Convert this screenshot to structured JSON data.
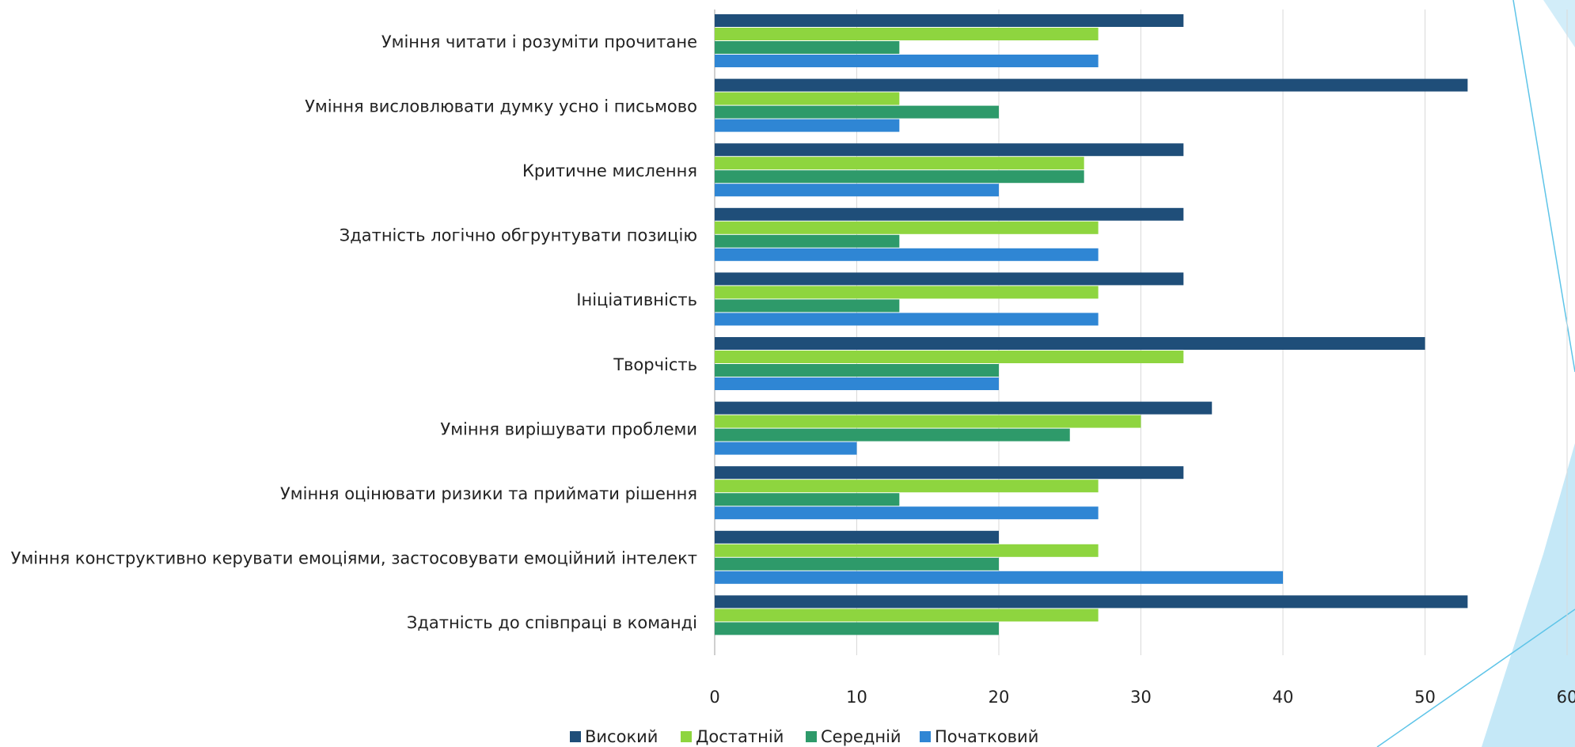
{
  "chart_data": {
    "type": "bar",
    "orientation": "horizontal",
    "categories": [
      "Уміння читати і розуміти прочитане",
      "Уміння висловлювати думку усно і письмово",
      "Критичне мислення",
      "Здатність логічно обгрунтувати позицію",
      "Ініціативність",
      "Творчість",
      "Уміння вирішувати проблеми",
      "Уміння оцінювати ризики та приймати рішення",
      "Уміння конструктивно керувати емоціями, застосовувати емоційний інтелект",
      "Здатність до співпраці в команді"
    ],
    "series": [
      {
        "name": "Високий",
        "color": "#1f4e79",
        "values": [
          33,
          53,
          33,
          33,
          33,
          50,
          35,
          33,
          20,
          53
        ]
      },
      {
        "name": "Достатній",
        "color": "#8ed53f",
        "values": [
          27,
          13,
          26,
          27,
          27,
          33,
          30,
          27,
          27,
          27
        ]
      },
      {
        "name": "Середній",
        "color": "#2e9a6a",
        "values": [
          13,
          20,
          26,
          13,
          13,
          20,
          25,
          13,
          20,
          20
        ]
      },
      {
        "name": "Початковий",
        "color": "#2f86d4",
        "values": [
          27,
          13,
          20,
          27,
          27,
          20,
          10,
          27,
          40,
          0
        ]
      }
    ],
    "xticks": [
      "0",
      "10",
      "20",
      "30",
      "40",
      "50",
      "60"
    ],
    "xlim": [
      0,
      60
    ],
    "grid": true,
    "legend": "bottom",
    "title": "",
    "xlabel": "",
    "ylabel": ""
  },
  "theme": {
    "gridline": "#d9d9d9",
    "axis": "#bfbfbf",
    "accent_light": "#bfe6f6",
    "accent_line": "#5ec4e8"
  }
}
